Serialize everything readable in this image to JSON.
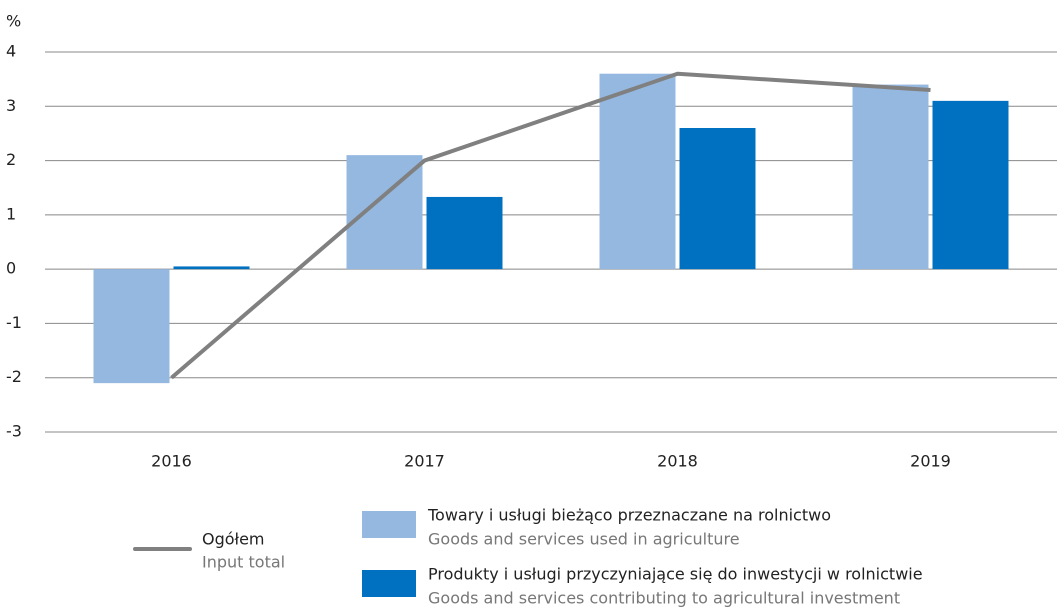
{
  "chart_data": {
    "type": "bar",
    "y_label": "%",
    "categories": [
      "2016",
      "2017",
      "2018",
      "2019"
    ],
    "ylim": [
      -3,
      4
    ],
    "yticks": [
      -3,
      -2,
      -1,
      0,
      1,
      2,
      3,
      4
    ],
    "grid": true,
    "series": [
      {
        "name": "Towary i usługi bieżąco przeznaczane na rolnictwo",
        "name_en": "Goods and services used in agriculture",
        "type": "bar",
        "color": "#95b8e0",
        "values": [
          -2.1,
          2.1,
          3.6,
          3.4
        ]
      },
      {
        "name": "Produkty i usługi przyczyniające się do inwestycji w rolnictwie",
        "name_en": "Goods and services contributing to agricultural investment",
        "type": "bar",
        "color": "#0070c0",
        "values": [
          0.05,
          1.33,
          2.6,
          3.1
        ]
      },
      {
        "name": "Ogółem",
        "name_en": "Input total",
        "type": "line",
        "color": "#808080",
        "values": [
          -2.0,
          2.0,
          3.6,
          3.3
        ]
      }
    ]
  }
}
